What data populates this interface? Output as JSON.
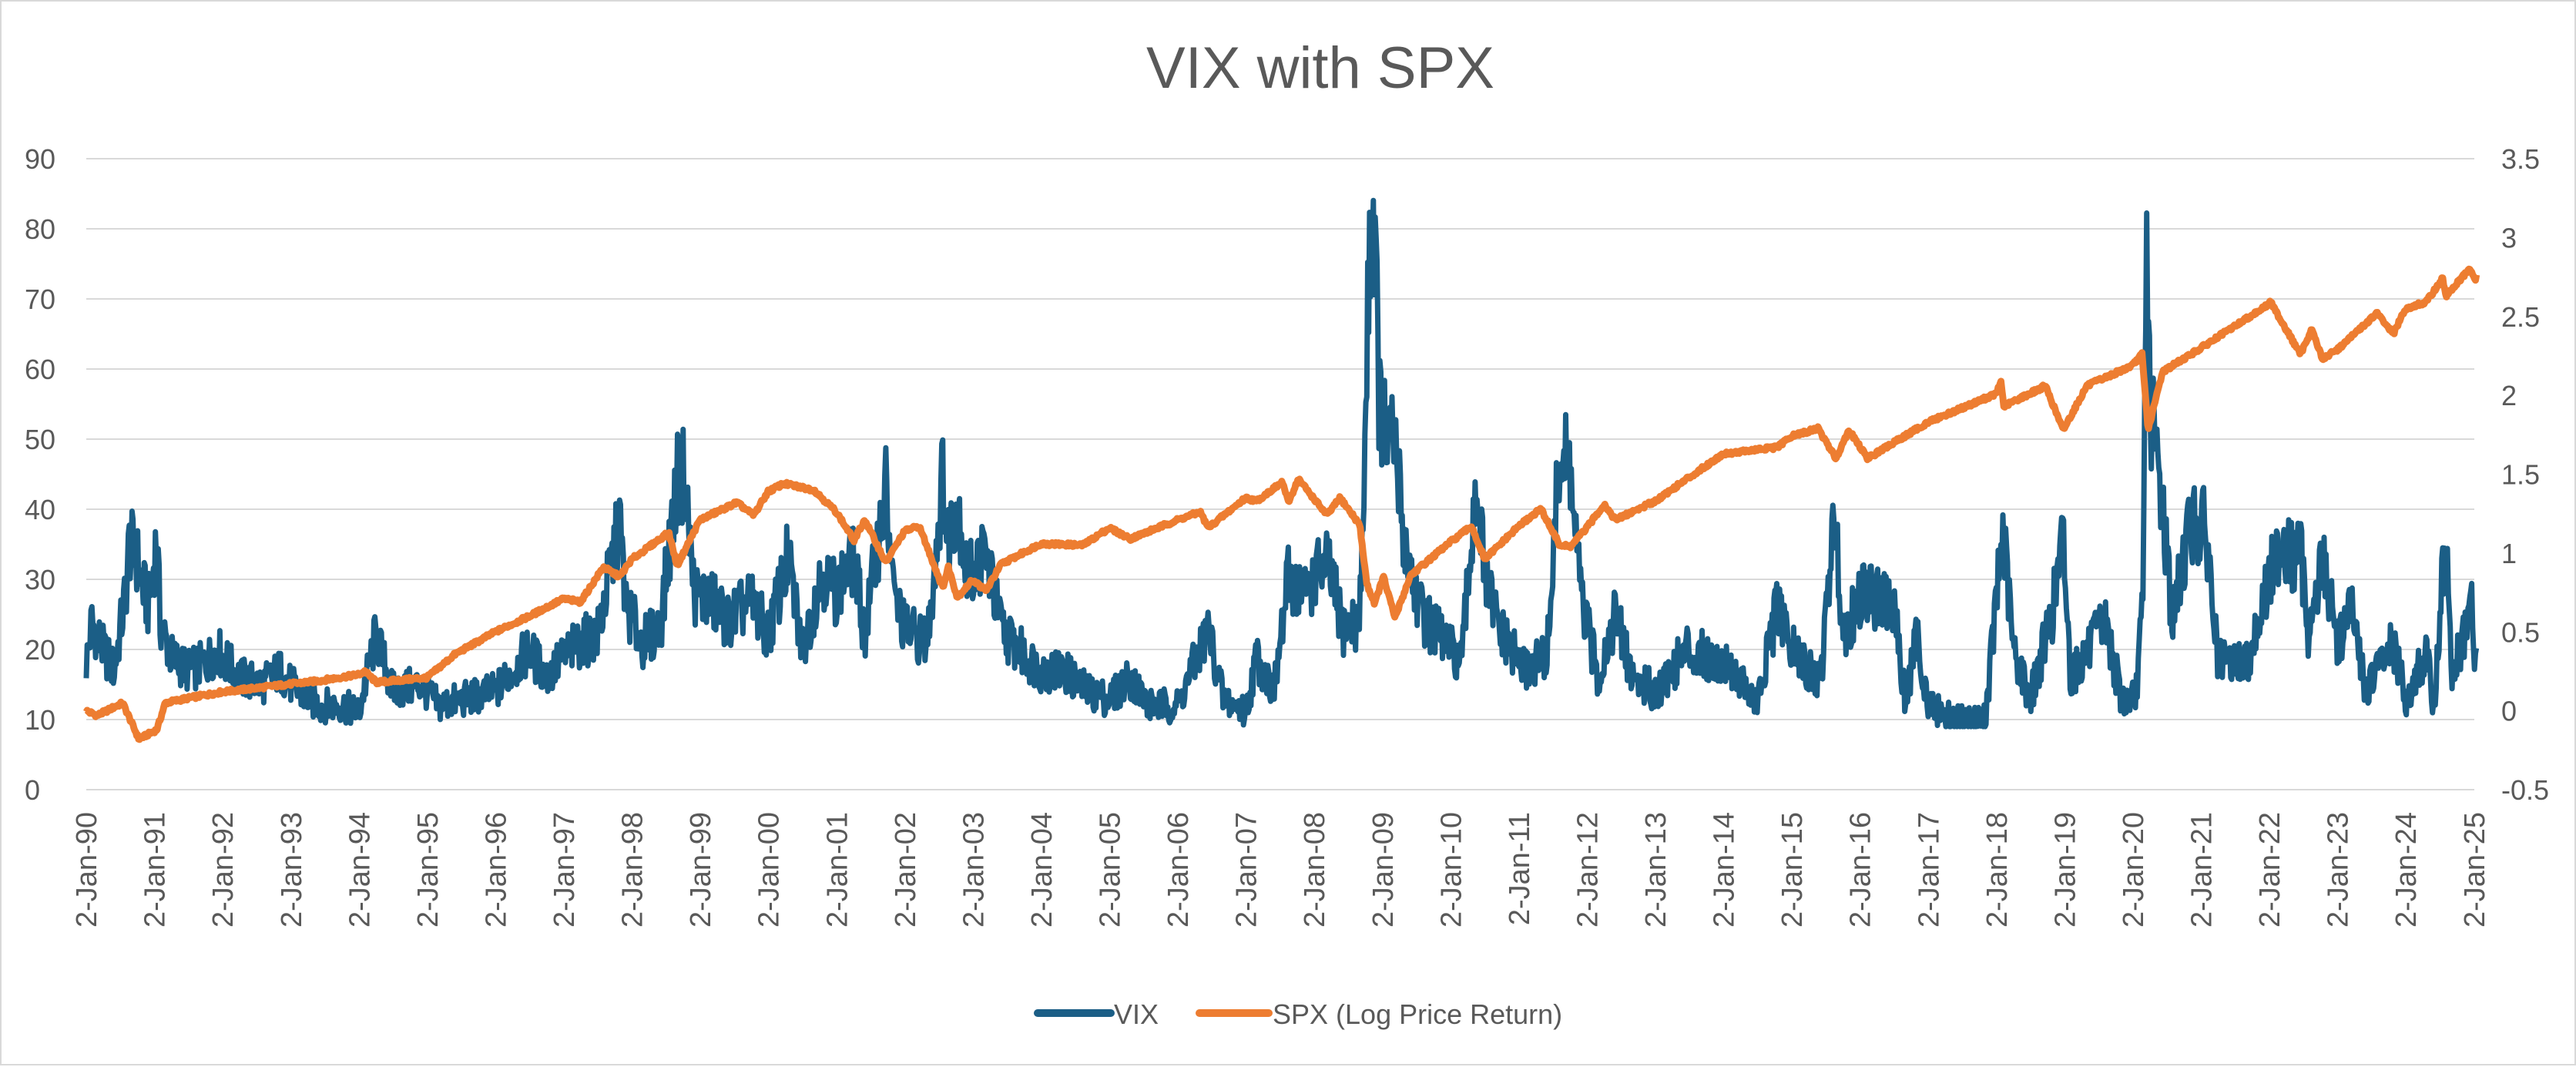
{
  "chart_data": {
    "type": "line",
    "title": "VIX with SPX",
    "x_tick_labels": [
      "2-Jan-90",
      "2-Jan-91",
      "2-Jan-92",
      "2-Jan-93",
      "2-Jan-94",
      "2-Jan-95",
      "2-Jan-96",
      "2-Jan-97",
      "2-Jan-98",
      "2-Jan-99",
      "2-Jan-00",
      "2-Jan-01",
      "2-Jan-02",
      "2-Jan-03",
      "2-Jan-04",
      "2-Jan-05",
      "2-Jan-06",
      "2-Jan-07",
      "2-Jan-08",
      "2-Jan-09",
      "2-Jan-10",
      "2-Jan-11",
      "2-Jan-12",
      "2-Jan-13",
      "2-Jan-14",
      "2-Jan-15",
      "2-Jan-16",
      "2-Jan-17",
      "2-Jan-18",
      "2-Jan-19",
      "2-Jan-20",
      "2-Jan-21",
      "2-Jan-22",
      "2-Jan-23",
      "2-Jan-24",
      "2-Jan-25"
    ],
    "y_left": {
      "range": [
        0,
        90
      ],
      "ticks": [
        "0",
        "10",
        "20",
        "30",
        "40",
        "50",
        "60",
        "70",
        "80",
        "90"
      ]
    },
    "y_right": {
      "range": [
        -0.5,
        3.5
      ],
      "ticks": [
        "-0.5",
        "0",
        "0.5",
        "1",
        "1.5",
        "2",
        "2.5",
        "3",
        "3.5"
      ]
    },
    "grid": true,
    "legend_position": "bottom",
    "colors": {
      "vix": "#1b5e86",
      "spx": "#ed7d31",
      "grid": "#d9d9d9",
      "text": "#595959"
    },
    "series": [
      {
        "name": "VIX",
        "axis": "left",
        "points": [
          [
            "1990-01-02",
            18
          ],
          [
            "1990-02-01",
            24
          ],
          [
            "1990-04-01",
            20
          ],
          [
            "1990-06-01",
            17
          ],
          [
            "1990-08-01",
            28
          ],
          [
            "1990-08-20",
            35
          ],
          [
            "1990-10-01",
            33
          ],
          [
            "1990-10-20",
            30
          ],
          [
            "1990-12-01",
            26
          ],
          [
            "1991-01-15",
            36
          ],
          [
            "1991-02-01",
            24
          ],
          [
            "1991-04-01",
            19
          ],
          [
            "1991-07-01",
            17
          ],
          [
            "1991-10-01",
            18
          ],
          [
            "1991-12-01",
            20
          ],
          [
            "1992-04-01",
            16
          ],
          [
            "1992-08-01",
            15
          ],
          [
            "1992-11-01",
            17
          ],
          [
            "1993-02-01",
            14
          ],
          [
            "1993-06-01",
            12
          ],
          [
            "1993-10-01",
            12
          ],
          [
            "1994-01-01",
            11
          ],
          [
            "1994-04-01",
            22
          ],
          [
            "1994-07-01",
            14
          ],
          [
            "1994-12-01",
            15
          ],
          [
            "1995-03-01",
            12
          ],
          [
            "1995-08-01",
            13
          ],
          [
            "1996-01-01",
            14
          ],
          [
            "1996-04-01",
            17
          ],
          [
            "1996-07-01",
            20
          ],
          [
            "1996-10-01",
            16
          ],
          [
            "1997-01-01",
            19
          ],
          [
            "1997-04-01",
            21
          ],
          [
            "1997-07-01",
            22
          ],
          [
            "1997-10-28",
            38
          ],
          [
            "1997-12-01",
            26
          ],
          [
            "1998-03-01",
            21
          ],
          [
            "1998-06-01",
            23
          ],
          [
            "1998-08-31",
            44
          ],
          [
            "1998-10-08",
            45
          ],
          [
            "1998-12-01",
            28
          ],
          [
            "1999-03-01",
            27
          ],
          [
            "1999-06-01",
            24
          ],
          [
            "1999-10-01",
            27
          ],
          [
            "2000-01-01",
            22
          ],
          [
            "2000-04-15",
            33
          ],
          [
            "2000-07-01",
            20
          ],
          [
            "2000-10-15",
            31
          ],
          [
            "2001-01-01",
            28
          ],
          [
            "2001-04-01",
            33
          ],
          [
            "2001-06-01",
            22
          ],
          [
            "2001-09-20",
            43
          ],
          [
            "2001-11-01",
            28
          ],
          [
            "2002-01-01",
            23
          ],
          [
            "2002-05-01",
            21
          ],
          [
            "2002-07-24",
            45
          ],
          [
            "2002-08-15",
            35
          ],
          [
            "2002-10-10",
            42
          ],
          [
            "2002-12-01",
            30
          ],
          [
            "2003-03-10",
            34
          ],
          [
            "2003-06-01",
            23
          ],
          [
            "2003-09-01",
            20
          ],
          [
            "2004-01-01",
            17
          ],
          [
            "2004-05-01",
            17
          ],
          [
            "2004-09-01",
            14
          ],
          [
            "2005-01-01",
            13
          ],
          [
            "2005-04-20",
            16
          ],
          [
            "2005-08-01",
            12
          ],
          [
            "2006-01-01",
            12
          ],
          [
            "2006-06-13",
            23
          ],
          [
            "2006-09-01",
            13
          ],
          [
            "2007-01-01",
            11
          ],
          [
            "2007-02-27",
            19
          ],
          [
            "2007-06-01",
            14
          ],
          [
            "2007-08-16",
            30
          ],
          [
            "2007-11-15",
            28
          ],
          [
            "2008-01-22",
            31
          ],
          [
            "2008-03-17",
            32
          ],
          [
            "2008-06-01",
            23
          ],
          [
            "2008-09-01",
            24
          ],
          [
            "2008-10-01",
            50
          ],
          [
            "2008-10-24",
            80
          ],
          [
            "2008-11-20",
            81
          ],
          [
            "2008-12-15",
            55
          ],
          [
            "2009-01-20",
            50
          ],
          [
            "2009-03-09",
            49
          ],
          [
            "2009-05-01",
            35
          ],
          [
            "2009-08-01",
            25
          ],
          [
            "2009-12-01",
            21
          ],
          [
            "2010-03-01",
            18
          ],
          [
            "2010-05-20",
            45
          ],
          [
            "2010-07-01",
            30
          ],
          [
            "2010-10-01",
            22
          ],
          [
            "2011-02-01",
            17
          ],
          [
            "2011-06-01",
            19
          ],
          [
            "2011-08-08",
            48
          ],
          [
            "2011-10-04",
            45
          ],
          [
            "2011-12-01",
            27
          ],
          [
            "2012-03-01",
            16
          ],
          [
            "2012-06-01",
            25
          ],
          [
            "2012-09-01",
            16
          ],
          [
            "2013-01-01",
            14
          ],
          [
            "2013-06-20",
            20
          ],
          [
            "2013-10-01",
            19
          ],
          [
            "2014-02-01",
            18
          ],
          [
            "2014-07-01",
            12
          ],
          [
            "2014-10-15",
            26
          ],
          [
            "2015-01-01",
            20
          ],
          [
            "2015-06-01",
            15
          ],
          [
            "2015-08-24",
            40
          ],
          [
            "2015-10-01",
            22
          ],
          [
            "2016-01-20",
            28
          ],
          [
            "2016-02-11",
            28
          ],
          [
            "2016-06-27",
            26
          ],
          [
            "2016-09-01",
            13
          ],
          [
            "2016-11-04",
            22
          ],
          [
            "2017-01-01",
            12
          ],
          [
            "2017-06-01",
            10
          ],
          [
            "2017-11-01",
            10
          ],
          [
            "2018-02-05",
            37
          ],
          [
            "2018-04-01",
            20
          ],
          [
            "2018-07-01",
            13
          ],
          [
            "2018-10-25",
            25
          ],
          [
            "2018-12-24",
            36
          ],
          [
            "2019-02-01",
            16
          ],
          [
            "2019-05-13",
            20
          ],
          [
            "2019-08-05",
            24
          ],
          [
            "2019-11-01",
            13
          ],
          [
            "2020-01-15",
            13
          ],
          [
            "2020-02-24",
            26
          ],
          [
            "2020-03-16",
            82
          ],
          [
            "2020-04-01",
            55
          ],
          [
            "2020-06-11",
            40
          ],
          [
            "2020-08-01",
            24
          ],
          [
            "2020-10-29",
            38
          ],
          [
            "2021-01-27",
            37
          ],
          [
            "2021-04-01",
            18
          ],
          [
            "2021-09-01",
            18
          ],
          [
            "2021-12-01",
            27
          ],
          [
            "2022-03-07",
            36
          ],
          [
            "2022-05-01",
            33
          ],
          [
            "2022-06-16",
            34
          ],
          [
            "2022-08-01",
            22
          ],
          [
            "2022-10-12",
            33
          ],
          [
            "2023-01-01",
            21
          ],
          [
            "2023-03-13",
            26
          ],
          [
            "2023-06-01",
            14
          ],
          [
            "2023-10-20",
            21
          ],
          [
            "2024-01-01",
            13
          ],
          [
            "2024-04-19",
            19
          ],
          [
            "2024-06-01",
            12
          ],
          [
            "2024-08-05",
            38
          ],
          [
            "2024-09-01",
            16
          ],
          [
            "2024-11-01",
            21
          ],
          [
            "2024-12-18",
            27
          ],
          [
            "2025-01-02",
            17
          ],
          [
            "2025-01-15",
            20
          ]
        ]
      },
      {
        "name": "SPX (Log Price Return)",
        "axis": "right",
        "points": [
          [
            "1990-01-02",
            0.0
          ],
          [
            "1990-03-01",
            -0.03
          ],
          [
            "1990-07-16",
            0.05
          ],
          [
            "1990-10-11",
            -0.18
          ],
          [
            "1991-01-15",
            -0.12
          ],
          [
            "1991-03-01",
            0.05
          ],
          [
            "1991-07-01",
            0.08
          ],
          [
            "1991-12-31",
            0.12
          ],
          [
            "1992-06-01",
            0.14
          ],
          [
            "1992-12-31",
            0.17
          ],
          [
            "1993-06-01",
            0.19
          ],
          [
            "1993-12-31",
            0.23
          ],
          [
            "1994-02-01",
            0.25
          ],
          [
            "1994-04-04",
            0.18
          ],
          [
            "1994-12-31",
            0.21
          ],
          [
            "1995-06-01",
            0.36
          ],
          [
            "1995-12-31",
            0.5
          ],
          [
            "1996-07-01",
            0.6
          ],
          [
            "1996-12-31",
            0.71
          ],
          [
            "1997-04-01",
            0.69
          ],
          [
            "1997-08-01",
            0.91
          ],
          [
            "1997-10-27",
            0.85
          ],
          [
            "1997-12-31",
            0.96
          ],
          [
            "1998-07-17",
            1.13
          ],
          [
            "1998-08-31",
            0.92
          ],
          [
            "1998-12-31",
            1.21
          ],
          [
            "1999-07-16",
            1.32
          ],
          [
            "1999-10-15",
            1.24
          ],
          [
            "1999-12-31",
            1.39
          ],
          [
            "2000-03-24",
            1.44
          ],
          [
            "2000-09-01",
            1.4
          ],
          [
            "2000-12-31",
            1.26
          ],
          [
            "2001-04-04",
            1.08
          ],
          [
            "2001-06-01",
            1.21
          ],
          [
            "2001-09-21",
            0.94
          ],
          [
            "2001-12-31",
            1.14
          ],
          [
            "2002-03-19",
            1.17
          ],
          [
            "2002-07-23",
            0.78
          ],
          [
            "2002-08-22",
            0.91
          ],
          [
            "2002-10-09",
            0.72
          ],
          [
            "2002-12-31",
            0.83
          ],
          [
            "2003-03-11",
            0.76
          ],
          [
            "2003-06-01",
            0.93
          ],
          [
            "2003-12-31",
            1.06
          ],
          [
            "2004-08-12",
            1.05
          ],
          [
            "2004-12-31",
            1.16
          ],
          [
            "2005-04-20",
            1.09
          ],
          [
            "2005-12-31",
            1.21
          ],
          [
            "2006-05-01",
            1.26
          ],
          [
            "2006-06-13",
            1.16
          ],
          [
            "2006-12-31",
            1.35
          ],
          [
            "2007-02-27",
            1.33
          ],
          [
            "2007-07-16",
            1.45
          ],
          [
            "2007-08-16",
            1.32
          ],
          [
            "2007-10-09",
            1.47
          ],
          [
            "2008-03-10",
            1.24
          ],
          [
            "2008-05-19",
            1.35
          ],
          [
            "2008-09-01",
            1.18
          ],
          [
            "2008-10-10",
            0.8
          ],
          [
            "2008-11-20",
            0.68
          ],
          [
            "2009-01-06",
            0.85
          ],
          [
            "2009-03-09",
            0.59
          ],
          [
            "2009-06-01",
            0.86
          ],
          [
            "2009-12-31",
            1.07
          ],
          [
            "2010-04-23",
            1.17
          ],
          [
            "2010-07-02",
            0.96
          ],
          [
            "2010-12-31",
            1.17
          ],
          [
            "2011-04-29",
            1.28
          ],
          [
            "2011-08-08",
            1.05
          ],
          [
            "2011-10-03",
            1.04
          ],
          [
            "2011-12-31",
            1.16
          ],
          [
            "2012-04-02",
            1.31
          ],
          [
            "2012-06-01",
            1.21
          ],
          [
            "2012-12-31",
            1.33
          ],
          [
            "2013-12-31",
            1.63
          ],
          [
            "2014-10-15",
            1.67
          ],
          [
            "2014-12-31",
            1.74
          ],
          [
            "2015-05-21",
            1.79
          ],
          [
            "2015-08-25",
            1.6
          ],
          [
            "2015-11-03",
            1.78
          ],
          [
            "2016-02-11",
            1.6
          ],
          [
            "2016-12-31",
            1.83
          ],
          [
            "2017-12-31",
            2.01
          ],
          [
            "2018-01-26",
            2.09
          ],
          [
            "2018-02-08",
            1.93
          ],
          [
            "2018-09-20",
            2.06
          ],
          [
            "2018-12-24",
            1.78
          ],
          [
            "2019-04-30",
            2.06
          ],
          [
            "2019-12-31",
            2.19
          ],
          [
            "2020-02-19",
            2.26
          ],
          [
            "2020-03-23",
            1.78
          ],
          [
            "2020-06-08",
            2.15
          ],
          [
            "2020-12-31",
            2.3
          ],
          [
            "2021-12-31",
            2.58
          ],
          [
            "2022-01-03",
            2.6
          ],
          [
            "2022-06-16",
            2.26
          ],
          [
            "2022-08-16",
            2.42
          ],
          [
            "2022-10-12",
            2.23
          ],
          [
            "2022-12-31",
            2.29
          ],
          [
            "2023-07-31",
            2.52
          ],
          [
            "2023-10-27",
            2.39
          ],
          [
            "2023-12-31",
            2.55
          ],
          [
            "2024-04-19",
            2.59
          ],
          [
            "2024-07-16",
            2.74
          ],
          [
            "2024-08-05",
            2.63
          ],
          [
            "2024-12-06",
            2.8
          ],
          [
            "2024-12-31",
            2.75
          ],
          [
            "2025-01-10",
            2.72
          ],
          [
            "2025-01-15",
            2.79
          ]
        ]
      }
    ]
  }
}
